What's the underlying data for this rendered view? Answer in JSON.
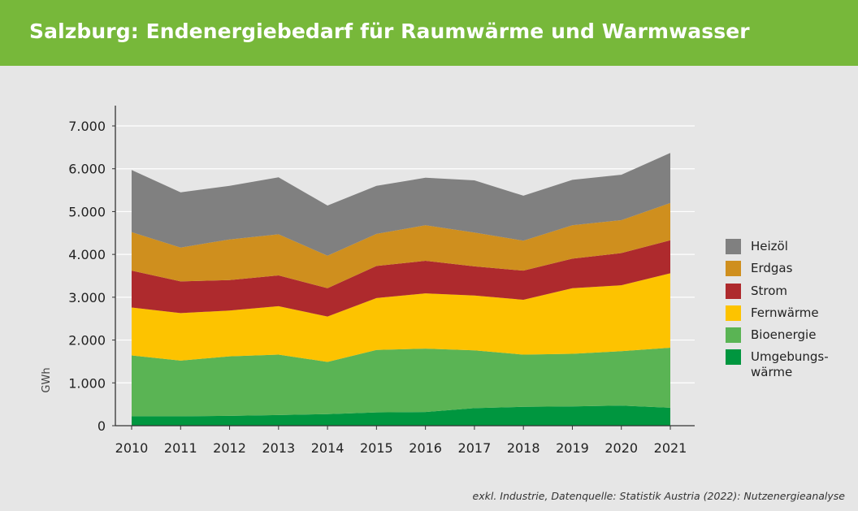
{
  "title": "Salzburg: Endenergiebedarf für Raumwärme und Warmwasser",
  "footnote": "exkl. Industrie, Datenquelle: Statistik Austria (2022): Nutzenergieanalyse",
  "chart_data": {
    "type": "area",
    "stacked": true,
    "title": "Salzburg: Endenergiebedarf für Raumwärme und Warmwasser",
    "xlabel": "",
    "ylabel": "GWh",
    "ylim": [
      0,
      7000
    ],
    "yticks": [
      0,
      1000,
      2000,
      3000,
      4000,
      5000,
      6000,
      7000
    ],
    "ytick_labels": [
      "0",
      "1.000",
      "2.000",
      "3.000",
      "4.000",
      "5.000",
      "6.000",
      "7.000"
    ],
    "grid": "horizontal",
    "legend_position": "right",
    "x": [
      "2010",
      "2011",
      "2012",
      "2013",
      "2014",
      "2015",
      "2016",
      "2017",
      "2018",
      "2019",
      "2020",
      "2021"
    ],
    "series": [
      {
        "name": "Umgebungswärme",
        "legend_lines": [
          "Umgebungs-",
          "wärme"
        ],
        "color": "#00963f",
        "values": [
          220,
          220,
          230,
          250,
          270,
          310,
          320,
          410,
          440,
          450,
          470,
          420
        ]
      },
      {
        "name": "Bioenergie",
        "color": "#5ab454",
        "values": [
          1420,
          1300,
          1390,
          1410,
          1220,
          1460,
          1480,
          1350,
          1220,
          1230,
          1270,
          1400
        ]
      },
      {
        "name": "Fernwärme",
        "color": "#fdc300",
        "values": [
          1120,
          1110,
          1070,
          1130,
          1060,
          1210,
          1290,
          1280,
          1280,
          1530,
          1540,
          1740
        ]
      },
      {
        "name": "Strom",
        "color": "#ae2a2d",
        "values": [
          860,
          740,
          710,
          720,
          660,
          750,
          760,
          680,
          680,
          690,
          750,
          770
        ]
      },
      {
        "name": "Erdgas",
        "color": "#cf8f1e",
        "values": [
          900,
          790,
          950,
          960,
          760,
          750,
          830,
          790,
          700,
          780,
          770,
          870
        ]
      },
      {
        "name": "Heizöl",
        "color": "#808080",
        "values": [
          1450,
          1290,
          1250,
          1330,
          1170,
          1120,
          1110,
          1220,
          1050,
          1060,
          1060,
          1170
        ]
      }
    ]
  }
}
